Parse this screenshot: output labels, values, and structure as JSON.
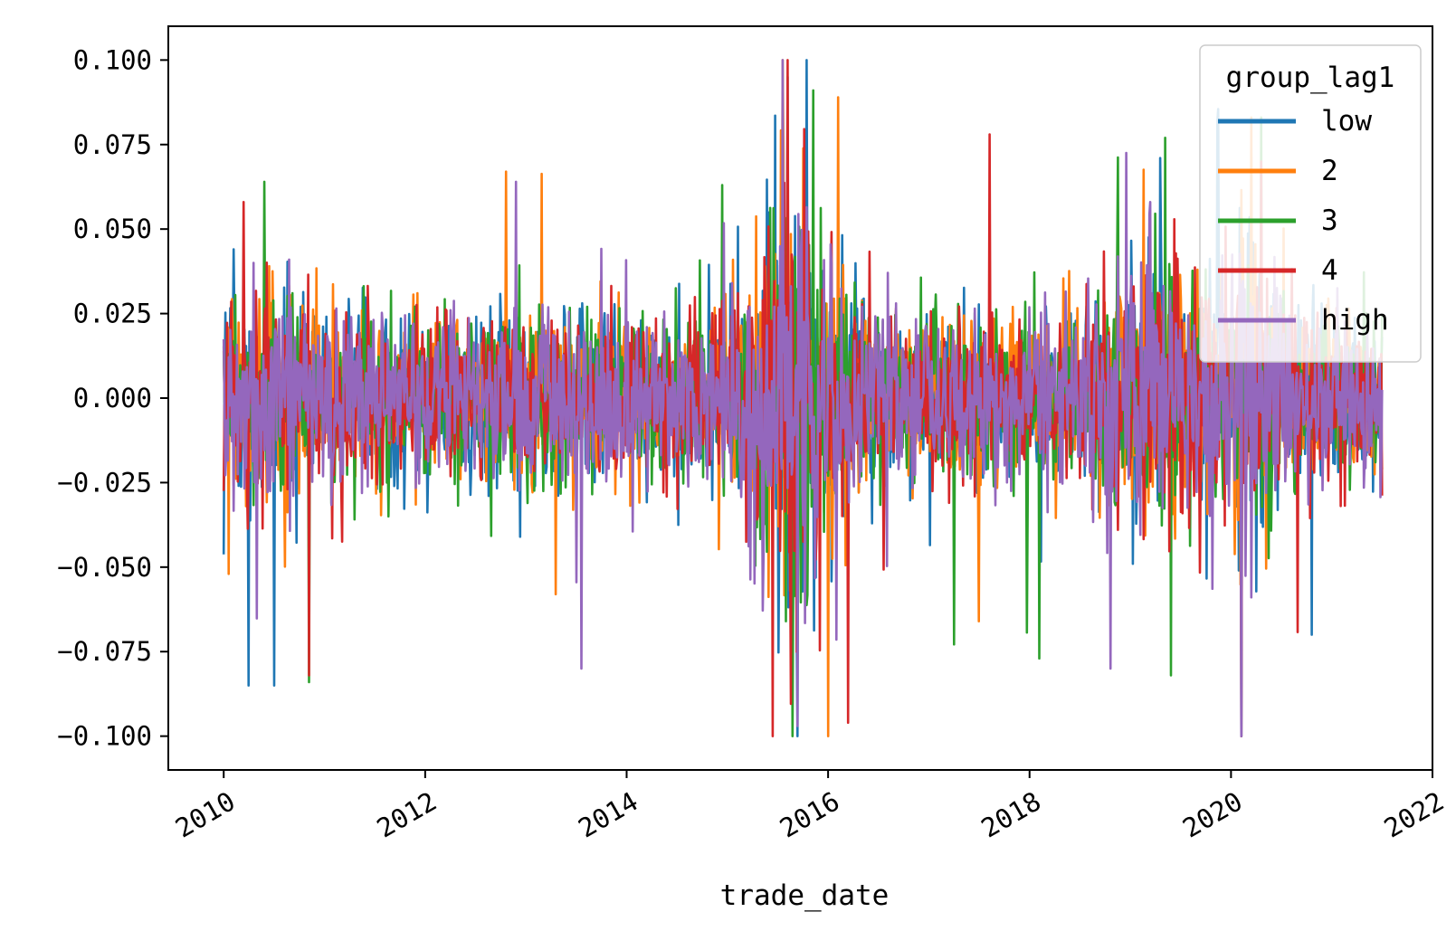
{
  "chart_data": {
    "type": "line",
    "title": "",
    "xlabel": "trade_date",
    "ylabel": "",
    "xlim": [
      2009.45,
      2022.0
    ],
    "ylim": [
      -0.11,
      0.11
    ],
    "x_ticks": [
      2010,
      2012,
      2014,
      2016,
      2018,
      2020,
      2022
    ],
    "x_tick_labels": [
      "2010",
      "2012",
      "2014",
      "2016",
      "2018",
      "2020",
      "2022"
    ],
    "y_ticks": [
      -0.1,
      -0.075,
      -0.05,
      -0.025,
      0.0,
      0.025,
      0.05,
      0.075,
      0.1
    ],
    "y_tick_labels": [
      "−0.100",
      "−0.075",
      "−0.050",
      "−0.025",
      "0.000",
      "0.025",
      "0.050",
      "0.075",
      "0.100"
    ],
    "grid": false,
    "legend": {
      "title": "group_lag1",
      "placement": "upper-right"
    },
    "date_range": [
      "2010-01",
      "2021-06"
    ],
    "series": [
      {
        "name": "low",
        "color": "#1f77b4",
        "baseline_amp": 0.012,
        "extremes": [
          [
            2010.25,
            -0.085
          ],
          [
            2010.5,
            -0.085
          ],
          [
            2010.1,
            0.044
          ],
          [
            2015.6,
            0.095
          ],
          [
            2015.7,
            -0.1
          ],
          [
            2019.3,
            0.071
          ],
          [
            2020.1,
            -0.1
          ],
          [
            2020.8,
            -0.07
          ]
        ]
      },
      {
        "name": "2",
        "color": "#ff7f0e",
        "baseline_amp": 0.012,
        "extremes": [
          [
            2010.05,
            -0.052
          ],
          [
            2012.8,
            0.067
          ],
          [
            2013.3,
            -0.058
          ],
          [
            2015.55,
            0.1
          ],
          [
            2016.0,
            -0.1
          ],
          [
            2016.1,
            0.089
          ],
          [
            2017.5,
            -0.066
          ],
          [
            2020.2,
            0.083
          ]
        ]
      },
      {
        "name": "3",
        "color": "#2ca02c",
        "baseline_amp": 0.012,
        "extremes": [
          [
            2010.4,
            0.064
          ],
          [
            2010.85,
            -0.084
          ],
          [
            2014.95,
            0.063
          ],
          [
            2015.65,
            -0.1
          ],
          [
            2018.1,
            -0.077
          ],
          [
            2019.35,
            0.077
          ],
          [
            2019.4,
            -0.082
          ],
          [
            2020.3,
            0.083
          ]
        ]
      },
      {
        "name": "4",
        "color": "#d62728",
        "baseline_amp": 0.012,
        "extremes": [
          [
            2010.2,
            0.058
          ],
          [
            2010.85,
            -0.082
          ],
          [
            2015.45,
            -0.1
          ],
          [
            2015.6,
            0.1
          ],
          [
            2016.2,
            -0.096
          ],
          [
            2017.6,
            0.078
          ],
          [
            2020.1,
            -0.1
          ],
          [
            2020.3,
            0.07
          ]
        ]
      },
      {
        "name": "high",
        "color": "#9467bd",
        "baseline_amp": 0.012,
        "extremes": [
          [
            2010.3,
            0.04
          ],
          [
            2012.9,
            0.064
          ],
          [
            2013.55,
            -0.08
          ],
          [
            2015.55,
            0.1
          ],
          [
            2015.7,
            -0.097
          ],
          [
            2018.8,
            -0.08
          ],
          [
            2019.2,
            0.058
          ],
          [
            2020.1,
            -0.1
          ]
        ]
      }
    ]
  }
}
